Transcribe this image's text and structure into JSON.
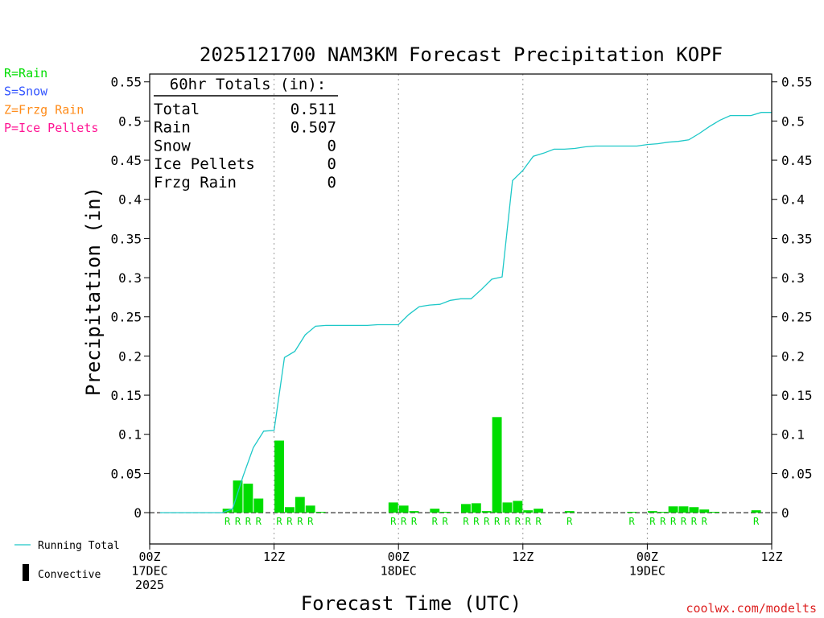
{
  "chart_data": {
    "type": "bar",
    "title": "2025121700 NAM3KM Forecast Precipitation KOPF",
    "xlabel": "Forecast Time (UTC)",
    "ylabel": "Precipitation (in)",
    "ylim": [
      -0.04,
      0.56
    ],
    "xlim_hours": [
      0,
      60
    ],
    "y_ticks": [
      0,
      0.05,
      0.1,
      0.15,
      0.2,
      0.25,
      0.3,
      0.35,
      0.4,
      0.45,
      0.5,
      0.55
    ],
    "y_tick_labels": [
      "0",
      "0.05",
      "0.1",
      "0.15",
      "0.2",
      "0.25",
      "0.3",
      "0.35",
      "0.4",
      "0.45",
      "0.5",
      "0.55"
    ],
    "x_ticks": [
      {
        "hour": 0,
        "lines": [
          "00Z",
          "17DEC",
          "2025"
        ]
      },
      {
        "hour": 12,
        "lines": [
          "12Z"
        ]
      },
      {
        "hour": 24,
        "lines": [
          "00Z",
          "18DEC"
        ]
      },
      {
        "hour": 36,
        "lines": [
          "12Z"
        ]
      },
      {
        "hour": 48,
        "lines": [
          "00Z",
          "19DEC"
        ]
      },
      {
        "hour": 60,
        "lines": [
          "12Z"
        ]
      }
    ],
    "gridlines_hours": [
      12,
      24,
      36,
      48
    ],
    "precip_type_legend": [
      {
        "label": "R=Rain",
        "color": "#00dd00"
      },
      {
        "label": "S=Snow",
        "color": "#3355ff"
      },
      {
        "label": "Z=Frzg Rain",
        "color": "#ff8c1a"
      },
      {
        "label": "P=Ice Pellets",
        "color": "#ff1493"
      }
    ],
    "totals_box": {
      "heading": "60hr Totals (in):",
      "rows": [
        {
          "label": "Total",
          "value": "0.511"
        },
        {
          "label": "Rain",
          "value": "0.507"
        },
        {
          "label": "Snow",
          "value": "0"
        },
        {
          "label": "Ice Pellets",
          "value": "0"
        },
        {
          "label": "Frzg Rain",
          "value": "0"
        }
      ]
    },
    "series": [
      {
        "name": "Hourly Precipitation",
        "kind": "bar",
        "color": "#00dd00",
        "hours": [
          8,
          9,
          10,
          11,
          13,
          14,
          15,
          16,
          17,
          24,
          25,
          26,
          28,
          29,
          31,
          32,
          33,
          34,
          35,
          36,
          37,
          38,
          41,
          47,
          49,
          50,
          51,
          52,
          53,
          54,
          55,
          59
        ],
        "values": [
          0.005,
          0.041,
          0.037,
          0.018,
          0.092,
          0.007,
          0.02,
          0.009,
          0.001,
          0.013,
          0.009,
          0.002,
          0.005,
          0.001,
          0.011,
          0.012,
          0.002,
          0.122,
          0.013,
          0.015,
          0.003,
          0.005,
          0.002,
          0.001,
          0.002,
          0.001,
          0.008,
          0.008,
          0.007,
          0.004,
          0.001,
          0.003
        ],
        "type_labels": [
          "R",
          "R",
          "R",
          "R",
          "R",
          "R",
          "R",
          "R",
          "",
          "R",
          "R",
          "R",
          "R",
          "R",
          "R",
          "R",
          "R",
          "R",
          "R",
          "R",
          "R",
          "R",
          "R",
          "R",
          "R",
          "R",
          "R",
          "R",
          "R",
          "R",
          "",
          "R"
        ]
      },
      {
        "name": "Running Total",
        "kind": "line",
        "color": "#1ec8c8",
        "hours": [
          1,
          7,
          8,
          9,
          10,
          11,
          12,
          13,
          14,
          15,
          16,
          17,
          18,
          19,
          20,
          21,
          22,
          23,
          24,
          25,
          26,
          27,
          28,
          29,
          30,
          31,
          32,
          33,
          34,
          35,
          36,
          37,
          38,
          39,
          40,
          41,
          42,
          43,
          44,
          45,
          46,
          47,
          48,
          49,
          50,
          51,
          52,
          53,
          54,
          55,
          56,
          57,
          58,
          59,
          60
        ],
        "values": [
          0,
          0,
          0.005,
          0.046,
          0.083,
          0.104,
          0.105,
          0.198,
          0.206,
          0.227,
          0.238,
          0.239,
          0.239,
          0.239,
          0.239,
          0.239,
          0.24,
          0.24,
          0.24,
          0.253,
          0.263,
          0.265,
          0.266,
          0.271,
          0.273,
          0.273,
          0.285,
          0.298,
          0.301,
          0.424,
          0.437,
          0.455,
          0.459,
          0.464,
          0.464,
          0.465,
          0.467,
          0.468,
          0.468,
          0.468,
          0.468,
          0.468,
          0.47,
          0.471,
          0.473,
          0.474,
          0.476,
          0.484,
          0.493,
          0.501,
          0.507,
          0.507,
          0.507,
          0.511,
          0.511
        ]
      }
    ],
    "bottom_legend": [
      {
        "label": "Running Total",
        "color": "#1ec8c8",
        "symbol": "line"
      },
      {
        "label": "Convective",
        "color": "#000000",
        "symbol": "bar"
      }
    ],
    "credit": "coolwx.com/modelts"
  }
}
